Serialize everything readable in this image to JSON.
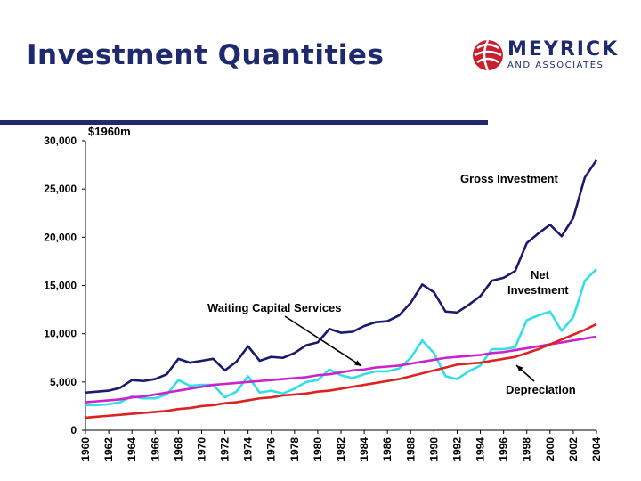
{
  "title": "Investment Quantities",
  "logo": {
    "name": "MEYRICK",
    "sub": "AND ASSOCIATES"
  },
  "chart_data": {
    "type": "line",
    "unit_label": "$1960m",
    "ylim": [
      0,
      30000
    ],
    "yticks": [
      "0",
      "5,000",
      "10,000",
      "15,000",
      "20,000",
      "25,000",
      "30,000"
    ],
    "ytick_values": [
      0,
      5000,
      10000,
      15000,
      20000,
      25000,
      30000
    ],
    "x": [
      1960,
      1961,
      1962,
      1963,
      1964,
      1965,
      1966,
      1967,
      1968,
      1969,
      1970,
      1971,
      1972,
      1973,
      1974,
      1975,
      1976,
      1977,
      1978,
      1979,
      1980,
      1981,
      1982,
      1983,
      1984,
      1985,
      1986,
      1987,
      1988,
      1989,
      1990,
      1991,
      1992,
      1993,
      1994,
      1995,
      1996,
      1997,
      1998,
      1999,
      2000,
      2001,
      2002,
      2003,
      2004
    ],
    "xticks": [
      "1960",
      "1962",
      "1964",
      "1966",
      "1968",
      "1970",
      "1972",
      "1974",
      "1976",
      "1978",
      "1980",
      "1982",
      "1984",
      "1986",
      "1988",
      "1990",
      "1992",
      "1994",
      "1996",
      "1998",
      "2000",
      "2002",
      "2004"
    ],
    "grid": false,
    "series": [
      {
        "name": "Gross Investment",
        "color": "#1a1a6e",
        "values": [
          3900,
          4000,
          4100,
          4400,
          5200,
          5100,
          5300,
          5800,
          7400,
          7000,
          7200,
          7400,
          6200,
          7100,
          8700,
          7200,
          7600,
          7500,
          8000,
          8800,
          9100,
          10500,
          10100,
          10200,
          10800,
          11200,
          11300,
          11900,
          13200,
          15100,
          14300,
          12300,
          12200,
          13000,
          13900,
          15500,
          15800,
          16500,
          19400,
          20400,
          21300,
          20100,
          22000,
          26200,
          28000
        ]
      },
      {
        "name": "Net Investment",
        "color": "#33dfe6",
        "values": [
          2600,
          2600,
          2700,
          2900,
          3500,
          3300,
          3300,
          3700,
          5200,
          4600,
          4700,
          4700,
          3400,
          4000,
          5600,
          3900,
          4100,
          3800,
          4300,
          5000,
          5200,
          6300,
          5700,
          5400,
          5800,
          6100,
          6100,
          6400,
          7500,
          9300,
          8000,
          5600,
          5300,
          6100,
          6700,
          8400,
          8400,
          8600,
          11400,
          11900,
          12300,
          10300,
          11700,
          15500,
          16700
        ]
      },
      {
        "name": "Waiting Capital Services",
        "color": "#cc22cc",
        "values": [
          2900,
          3000,
          3100,
          3200,
          3400,
          3500,
          3700,
          3900,
          4100,
          4300,
          4500,
          4700,
          4800,
          4900,
          5000,
          5100,
          5200,
          5300,
          5400,
          5500,
          5700,
          5800,
          6000,
          6200,
          6300,
          6500,
          6600,
          6700,
          6900,
          7100,
          7300,
          7500,
          7600,
          7700,
          7800,
          8000,
          8100,
          8300,
          8500,
          8700,
          8900,
          9100,
          9300,
          9500,
          9700
        ]
      },
      {
        "name": "Depreciation",
        "color": "#dd2222",
        "values": [
          1300,
          1400,
          1500,
          1600,
          1700,
          1800,
          1900,
          2000,
          2200,
          2300,
          2500,
          2600,
          2800,
          2900,
          3100,
          3300,
          3400,
          3600,
          3700,
          3800,
          4000,
          4100,
          4300,
          4500,
          4700,
          4900,
          5100,
          5300,
          5600,
          5900,
          6200,
          6500,
          6800,
          6900,
          7000,
          7200,
          7400,
          7600,
          8000,
          8400,
          8900,
          9400,
          9900,
          10400,
          11000
        ]
      }
    ],
    "annotations": [
      {
        "text": "Gross Investment",
        "series": "Gross Investment"
      },
      {
        "text": "Net",
        "series": "Net Investment"
      },
      {
        "text": "Investment",
        "series": "Net Investment"
      },
      {
        "text": "Waiting Capital Services",
        "series": "Waiting Capital Services"
      },
      {
        "text": "Depreciation",
        "series": "Depreciation"
      }
    ]
  }
}
